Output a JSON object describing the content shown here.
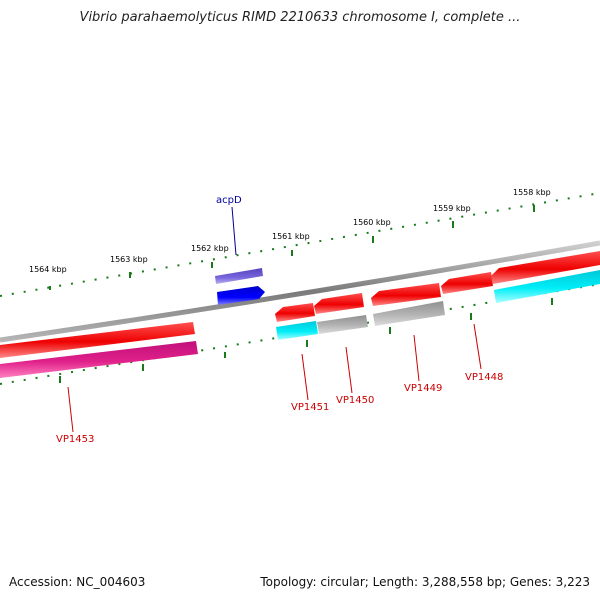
{
  "title": "Vibrio parahaemolyticus RIMD 2210633 chromosome I, complete ...",
  "footer": {
    "accession": "Accession: NC_004603",
    "summary": "Topology: circular; Length: 3,288,558 bp; Genes: 3,223"
  },
  "scale_labels": [
    "1564 kbp",
    "1563 kbp",
    "1562 kbp",
    "1561 kbp",
    "1560 kbp",
    "1559 kbp",
    "1558 kbp"
  ],
  "gene_labels": [
    "acpD",
    "VP1453",
    "VP1451",
    "VP1450",
    "VP1449",
    "VP1448"
  ],
  "colors": {
    "backbone": "#8a8a8a",
    "tick": "#1a7a1a",
    "red": "#ee0000",
    "magenta": "#e0208a",
    "cyan": "#00e5ee",
    "gray": "#a8a8a8",
    "blue": "#0000ee",
    "purple": "#6655cc",
    "label_red": "#cc0000",
    "label_blue": "#000099"
  }
}
